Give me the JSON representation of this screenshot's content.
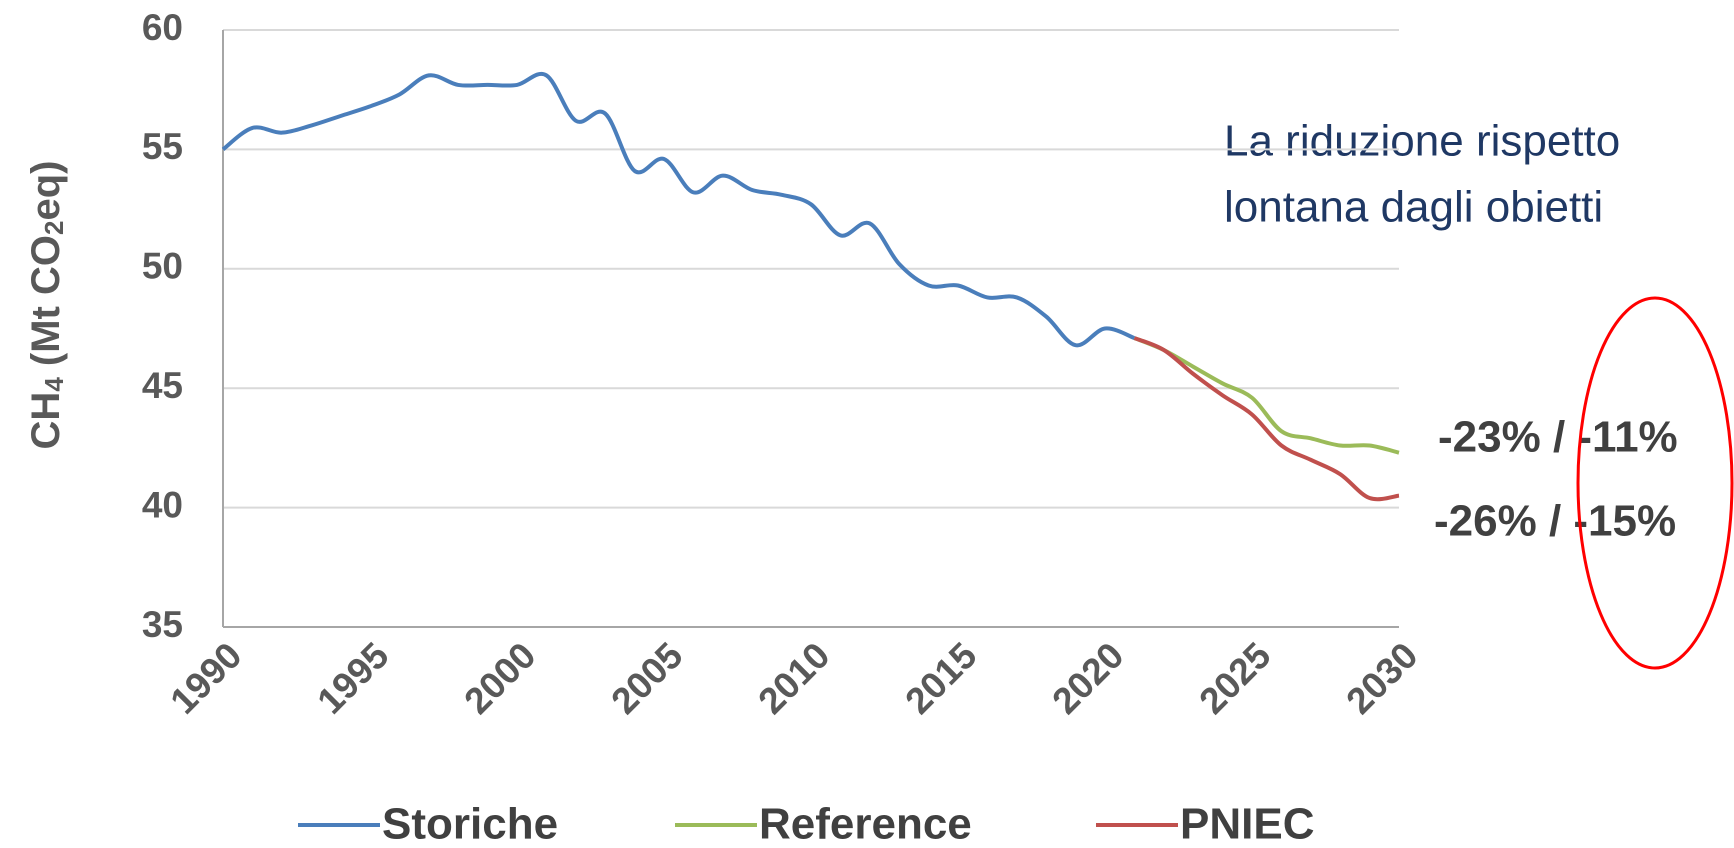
{
  "chart_data": {
    "type": "line",
    "y_label_parts": [
      "CH",
      "4",
      " (Mt CO",
      "2",
      "eq)"
    ],
    "x": [
      1990,
      1991,
      1992,
      1993,
      1994,
      1995,
      1996,
      1997,
      1998,
      1999,
      2000,
      2001,
      2002,
      2003,
      2004,
      2005,
      2006,
      2007,
      2008,
      2009,
      2010,
      2011,
      2012,
      2013,
      2014,
      2015,
      2016,
      2017,
      2018,
      2019,
      2020,
      2021,
      2022,
      2023,
      2024,
      2025,
      2026,
      2027,
      2028,
      2029,
      2030
    ],
    "series": [
      {
        "name": "Storiche",
        "color": "#4a7ebb",
        "values": [
          55.0,
          55.9,
          55.7,
          56.0,
          56.4,
          56.8,
          57.3,
          58.1,
          57.7,
          57.7,
          57.7,
          58.1,
          56.2,
          56.5,
          54.1,
          54.6,
          53.2,
          53.9,
          53.3,
          53.1,
          52.7,
          51.4,
          51.9,
          50.2,
          49.3,
          49.3,
          48.8,
          48.8,
          48.0,
          46.8,
          47.5,
          47.1,
          null,
          null,
          null,
          null,
          null,
          null,
          null,
          null,
          null
        ]
      },
      {
        "name": "Reference",
        "color": "#9bbb59",
        "values": [
          null,
          null,
          null,
          null,
          null,
          null,
          null,
          null,
          null,
          null,
          null,
          null,
          null,
          null,
          null,
          null,
          null,
          null,
          null,
          null,
          null,
          null,
          null,
          null,
          null,
          null,
          null,
          null,
          null,
          null,
          null,
          47.1,
          46.6,
          45.9,
          45.2,
          44.6,
          43.2,
          42.9,
          42.6,
          42.6,
          42.3
        ]
      },
      {
        "name": "PNIEC",
        "color": "#c0504d",
        "values": [
          null,
          null,
          null,
          null,
          null,
          null,
          null,
          null,
          null,
          null,
          null,
          null,
          null,
          null,
          null,
          null,
          null,
          null,
          null,
          null,
          null,
          null,
          null,
          null,
          null,
          null,
          null,
          null,
          null,
          null,
          null,
          47.1,
          46.6,
          45.6,
          44.7,
          43.9,
          42.6,
          42.0,
          41.4,
          40.4,
          40.5
        ]
      }
    ],
    "xlim": [
      1990,
      2030
    ],
    "xticks": [
      1990,
      1995,
      2000,
      2005,
      2010,
      2015,
      2020,
      2025,
      2030
    ],
    "ylim": [
      35,
      60
    ],
    "yticks": [
      35,
      40,
      45,
      50,
      55,
      60
    ],
    "grid": true,
    "annotations": [
      "La riduzione rispetto",
      "lontana dagli obietti"
    ],
    "series_labels": [
      "-23% / -11%",
      "-26% / -15%"
    ]
  }
}
